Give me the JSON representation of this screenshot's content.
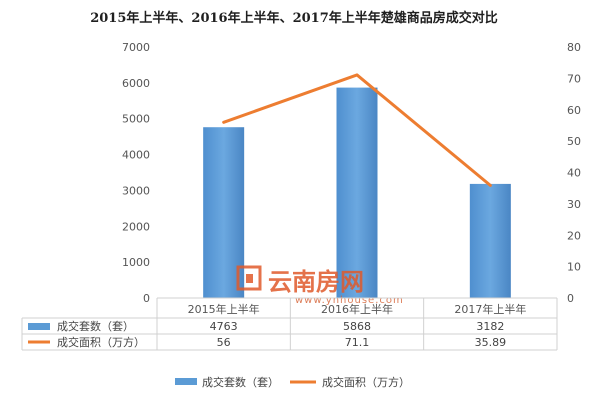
{
  "chart_data": {
    "type": "bar",
    "title": "2015年上半年、2016年上半年、2017年上半年楚雄商品房成交对比",
    "categories": [
      "2015年上半年",
      "2016年上半年",
      "2017年上半年"
    ],
    "series": [
      {
        "name": "成交套数（套）",
        "kind": "bar",
        "axis": "left",
        "values": [
          4763,
          5868,
          3182
        ],
        "labels": [
          "4763",
          "5868",
          "3182"
        ],
        "color": "#5b9bd5"
      },
      {
        "name": "成交面积（万方）",
        "kind": "line",
        "axis": "right",
        "values": [
          56,
          71.1,
          35.89
        ],
        "labels": [
          "56",
          "71.1",
          "35.89"
        ],
        "color": "#ed7d31"
      }
    ],
    "y_left": {
      "min": 0,
      "max": 7000,
      "ticks": [
        "0",
        "1000",
        "2000",
        "3000",
        "4000",
        "5000",
        "6000",
        "7000"
      ]
    },
    "y_right": {
      "min": 0,
      "max": 80,
      "ticks": [
        "0",
        "10",
        "20",
        "30",
        "40",
        "50",
        "60",
        "70",
        "80"
      ]
    },
    "data_table": true,
    "legend": "bottom",
    "grid": false
  },
  "watermark": {
    "text": "云南房网",
    "url": "www.ynhouse.com"
  }
}
